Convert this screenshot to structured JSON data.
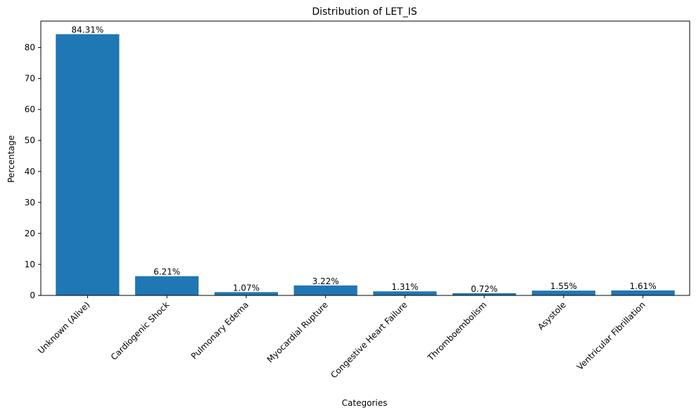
{
  "chart_data": {
    "type": "bar",
    "title": "Distribution of LET_IS",
    "xlabel": "Categories",
    "ylabel": "Percentage",
    "categories": [
      "Unknown (Alive)",
      "Cardiogenic Shock",
      "Pulmonary Edema",
      "Myocardial Rupture",
      "Congestive Heart Failure",
      "Thromboembolism",
      "Asystole",
      "Ventricular Fibrillation"
    ],
    "values": [
      84.31,
      6.21,
      1.07,
      3.22,
      1.31,
      0.72,
      1.55,
      1.61
    ],
    "data_labels": [
      "84.31%",
      "6.21%",
      "1.07%",
      "3.22%",
      "1.31%",
      "0.72%",
      "1.55%",
      "1.61%"
    ],
    "ylim": [
      0,
      88.53
    ],
    "yticks": [
      0,
      10,
      20,
      30,
      40,
      50,
      60,
      70,
      80
    ],
    "grid": false,
    "bar_color": "#1f77b4"
  }
}
